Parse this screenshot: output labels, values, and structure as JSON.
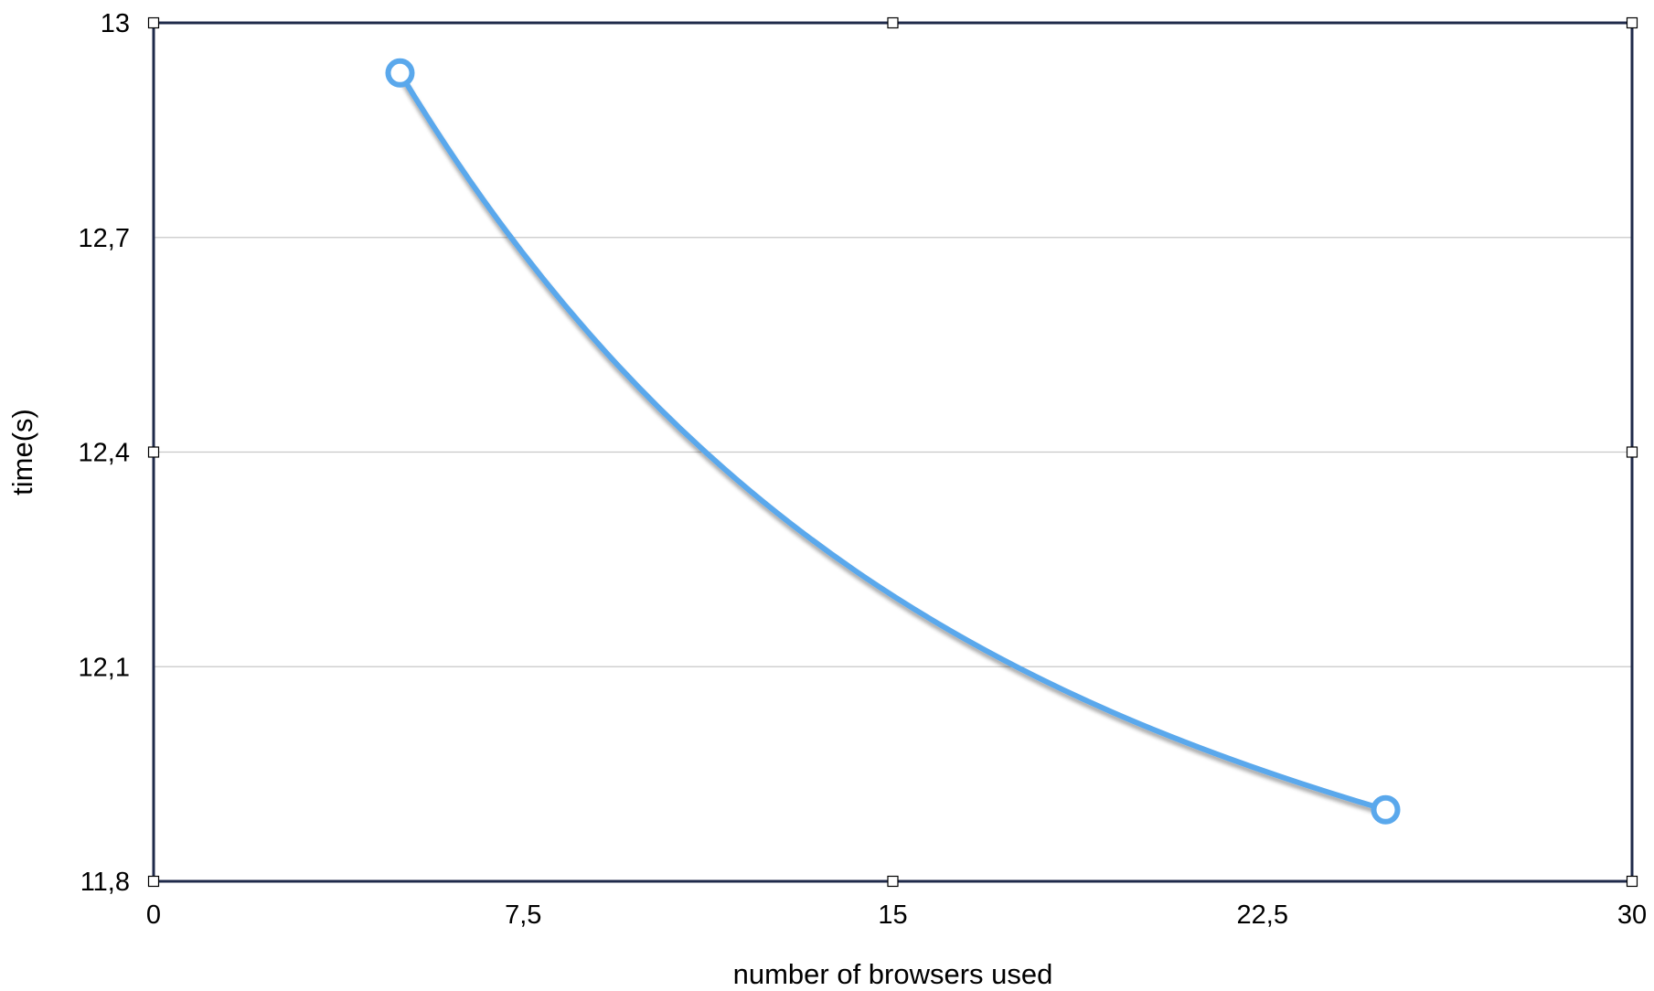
{
  "chart_data": {
    "type": "line",
    "title": "",
    "xlabel": "number of browsers used",
    "ylabel": "time(s)",
    "xlim": [
      0,
      30
    ],
    "ylim": [
      11.8,
      13
    ],
    "x_ticks": [
      "0",
      "7,5",
      "15",
      "22,5",
      "30"
    ],
    "y_ticks": [
      "11,8",
      "12,1",
      "12,4",
      "12,7",
      "13"
    ],
    "x_tick_values": [
      0,
      7.5,
      15,
      22.5,
      30
    ],
    "y_tick_values": [
      11.8,
      12.1,
      12.4,
      12.7,
      13
    ],
    "grid": "horizontal",
    "legend": "none",
    "series": [
      {
        "curve": "smooth",
        "color": "#5aa8ec",
        "points": [
          {
            "x": 5,
            "y": 12.93
          },
          {
            "x": 25,
            "y": 11.9
          }
        ]
      }
    ]
  }
}
